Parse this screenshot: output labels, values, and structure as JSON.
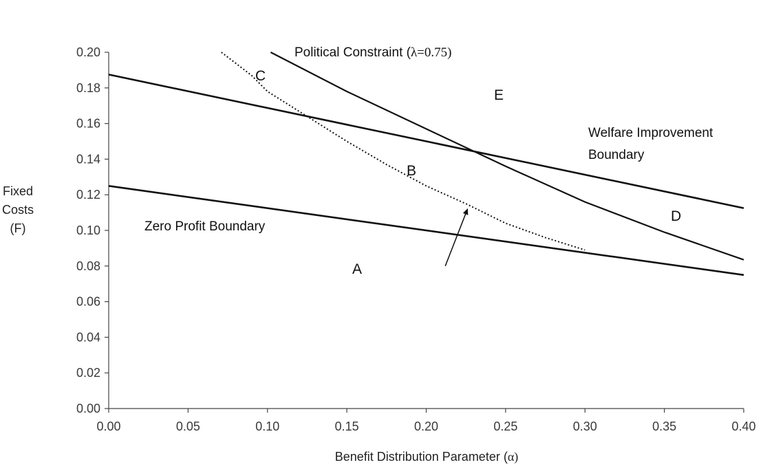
{
  "chart_data": {
    "type": "line",
    "xlabel": "Benefit Distribution Parameter (α)",
    "ylabel_lines": [
      "Fixed",
      "Costs",
      "(F)"
    ],
    "xlim": [
      0,
      0.4
    ],
    "ylim": [
      0,
      0.2
    ],
    "x_ticks": [
      "0.00",
      "0.05",
      "0.10",
      "0.15",
      "0.20",
      "0.25",
      "0.30",
      "0.35",
      "0.40"
    ],
    "y_ticks": [
      "0.00",
      "0.02",
      "0.04",
      "0.06",
      "0.08",
      "0.10",
      "0.12",
      "0.14",
      "0.16",
      "0.18",
      "0.20"
    ],
    "grid": false,
    "legend": "none",
    "series": [
      {
        "key": "welfare",
        "style": "solid",
        "points": [
          [
            0.0,
            0.1875
          ],
          [
            0.4,
            0.1125
          ]
        ]
      },
      {
        "key": "zero",
        "style": "solid",
        "points": [
          [
            0.0,
            0.125
          ],
          [
            0.4,
            0.075
          ]
        ]
      },
      {
        "key": "political",
        "style": "solid",
        "points": [
          [
            0.102,
            0.2
          ],
          [
            0.15,
            0.178
          ],
          [
            0.2,
            0.157
          ],
          [
            0.25,
            0.136
          ],
          [
            0.3,
            0.116
          ],
          [
            0.35,
            0.099
          ],
          [
            0.4,
            0.0835
          ]
        ]
      },
      {
        "key": "dotted",
        "style": "dotted",
        "points": [
          [
            0.071,
            0.2
          ],
          [
            0.09,
            0.187
          ],
          [
            0.1,
            0.178
          ],
          [
            0.125,
            0.164
          ],
          [
            0.15,
            0.15
          ],
          [
            0.175,
            0.137
          ],
          [
            0.2,
            0.125
          ],
          [
            0.225,
            0.115
          ],
          [
            0.25,
            0.104
          ],
          [
            0.275,
            0.096
          ],
          [
            0.3,
            0.089
          ]
        ]
      }
    ],
    "annotations": {
      "political_main": "Political Constraint (",
      "political_param": "λ=0.75)",
      "welfare_line1": "Welfare Improvement",
      "welfare_line2": "Boundary",
      "zero_profit": "Zero Profit Boundary"
    },
    "regions": [
      "A",
      "B",
      "C",
      "D",
      "E"
    ],
    "arrow": {
      "from": [
        0.212,
        0.08
      ],
      "to": [
        0.226,
        0.112
      ]
    }
  }
}
